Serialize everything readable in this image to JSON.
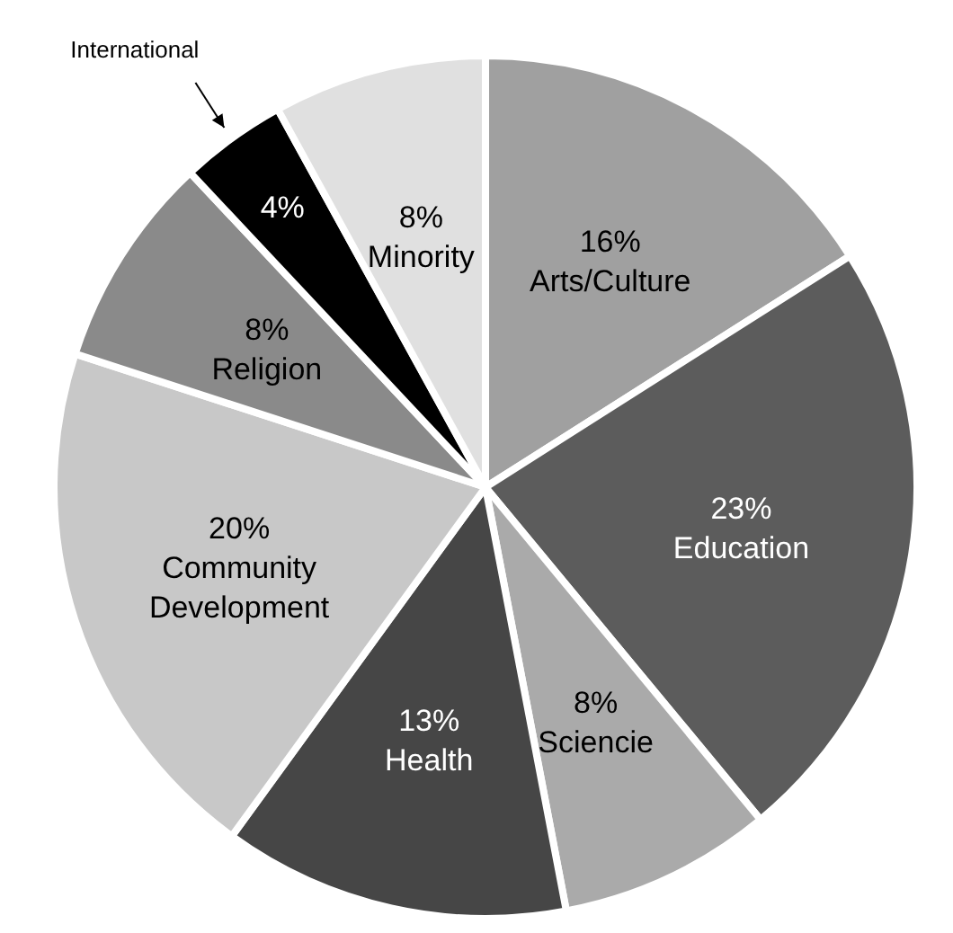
{
  "chart_data": {
    "type": "pie",
    "categories": [
      "Arts/Culture",
      "Education",
      "Sciencie",
      "Health",
      "Community Development",
      "Religion",
      "International",
      "Minority"
    ],
    "values": [
      16,
      23,
      8,
      13,
      20,
      8,
      4,
      8
    ],
    "value_labels": [
      "16%",
      "23%",
      "8%",
      "13%",
      "20%",
      "8%",
      "4%",
      "8%"
    ],
    "colors": [
      "#a0a0a0",
      "#5c5c5c",
      "#aaaaaa",
      "#464646",
      "#c8c8c8",
      "#8a8a8a",
      "#000000",
      "#e0e0e0"
    ]
  }
}
